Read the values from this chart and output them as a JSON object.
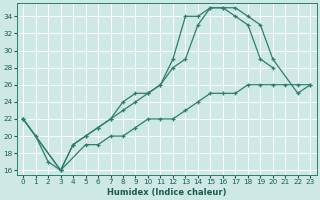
{
  "xlabel": "Humidex (Indice chaleur)",
  "bg_color": "#cde8e5",
  "grid_color": "#ffffff",
  "line_color": "#2e7d6e",
  "xlim": [
    -0.5,
    23.5
  ],
  "ylim": [
    15.5,
    35.5
  ],
  "xticks": [
    0,
    1,
    2,
    3,
    4,
    5,
    6,
    7,
    8,
    9,
    10,
    11,
    12,
    13,
    14,
    15,
    16,
    17,
    18,
    19,
    20,
    21,
    22,
    23
  ],
  "yticks": [
    16,
    18,
    20,
    22,
    24,
    26,
    28,
    30,
    32,
    34
  ],
  "line1_x": [
    0,
    1,
    2,
    3,
    4,
    5,
    6,
    7,
    8,
    9,
    10,
    11,
    12,
    13,
    14,
    15,
    16,
    17,
    18,
    19,
    20,
    22,
    23
  ],
  "line1_y": [
    22,
    20,
    17,
    16,
    19,
    20,
    21,
    22,
    23,
    24,
    25,
    26,
    28,
    29,
    33,
    35,
    35,
    35,
    34,
    33,
    29,
    25,
    26
  ],
  "line2_x": [
    0,
    3,
    4,
    5,
    6,
    7,
    8,
    9,
    10,
    11,
    12,
    13,
    14,
    15,
    16,
    17,
    18,
    19,
    20
  ],
  "line2_y": [
    22,
    16,
    19,
    20,
    21,
    22,
    24,
    25,
    25,
    26,
    29,
    34,
    34,
    35,
    35,
    34,
    33,
    29,
    28
  ],
  "line3_x": [
    0,
    3,
    5,
    6,
    7,
    8,
    9,
    10,
    11,
    12,
    13,
    14,
    15,
    16,
    17,
    18,
    19,
    20,
    21,
    22,
    23
  ],
  "line3_y": [
    22,
    16,
    19,
    19,
    20,
    20,
    21,
    22,
    22,
    22,
    23,
    24,
    25,
    25,
    25,
    26,
    26,
    26,
    26,
    26,
    26
  ]
}
